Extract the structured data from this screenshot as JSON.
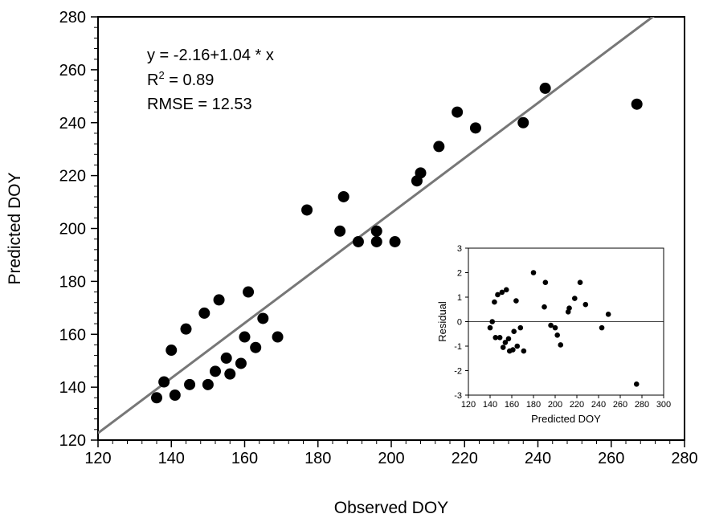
{
  "chart_data": [
    {
      "type": "scatter",
      "xlabel": "Observed DOY",
      "ylabel": "Predicted DOY",
      "xlim": [
        120,
        280
      ],
      "ylim": [
        120,
        280
      ],
      "xticks": [
        120,
        140,
        160,
        180,
        200,
        220,
        240,
        260,
        280
      ],
      "yticks": [
        120,
        140,
        160,
        180,
        200,
        220,
        240,
        260,
        280
      ],
      "annotations": [
        "y = -2.16+1.04 * x",
        "R",
        "2",
        " = 0.89",
        "RMSE = 12.53"
      ],
      "fit_line": {
        "intercept": -2.16,
        "slope": 1.04
      },
      "points": [
        {
          "x": 136,
          "y": 136
        },
        {
          "x": 138,
          "y": 142
        },
        {
          "x": 140,
          "y": 154
        },
        {
          "x": 141,
          "y": 137
        },
        {
          "x": 144,
          "y": 162
        },
        {
          "x": 145,
          "y": 141
        },
        {
          "x": 149,
          "y": 168
        },
        {
          "x": 150,
          "y": 141
        },
        {
          "x": 152,
          "y": 146
        },
        {
          "x": 153,
          "y": 173
        },
        {
          "x": 155,
          "y": 151
        },
        {
          "x": 156,
          "y": 145
        },
        {
          "x": 159,
          "y": 149
        },
        {
          "x": 160,
          "y": 159
        },
        {
          "x": 161,
          "y": 176
        },
        {
          "x": 163,
          "y": 155
        },
        {
          "x": 165,
          "y": 166
        },
        {
          "x": 169,
          "y": 159
        },
        {
          "x": 177,
          "y": 207
        },
        {
          "x": 186,
          "y": 199
        },
        {
          "x": 187,
          "y": 212
        },
        {
          "x": 191,
          "y": 195
        },
        {
          "x": 196,
          "y": 199
        },
        {
          "x": 196,
          "y": 195
        },
        {
          "x": 201,
          "y": 195
        },
        {
          "x": 207,
          "y": 218
        },
        {
          "x": 208,
          "y": 221
        },
        {
          "x": 213,
          "y": 231
        },
        {
          "x": 218,
          "y": 244
        },
        {
          "x": 223,
          "y": 238
        },
        {
          "x": 236,
          "y": 240
        },
        {
          "x": 242,
          "y": 253
        },
        {
          "x": 267,
          "y": 247
        }
      ]
    },
    {
      "type": "scatter",
      "xlabel": "Predicted DOY",
      "ylabel": "Residual",
      "xlim": [
        120,
        300
      ],
      "ylim": [
        -3,
        3
      ],
      "xticks": [
        120,
        140,
        160,
        180,
        200,
        220,
        240,
        260,
        280,
        300
      ],
      "yticks": [
        -3,
        -2,
        -1,
        0,
        1,
        2,
        3
      ],
      "zero_line": 0,
      "points": [
        {
          "x": 140,
          "y": -0.25
        },
        {
          "x": 142,
          "y": 0.0
        },
        {
          "x": 144,
          "y": 0.8
        },
        {
          "x": 145,
          "y": -0.65
        },
        {
          "x": 147,
          "y": 1.1
        },
        {
          "x": 149,
          "y": -0.65
        },
        {
          "x": 151,
          "y": 1.2
        },
        {
          "x": 152,
          "y": -1.05
        },
        {
          "x": 154,
          "y": -0.85
        },
        {
          "x": 155,
          "y": 1.3
        },
        {
          "x": 157,
          "y": -0.7
        },
        {
          "x": 158,
          "y": -1.2
        },
        {
          "x": 161,
          "y": -1.15
        },
        {
          "x": 162,
          "y": -0.4
        },
        {
          "x": 164,
          "y": 0.85
        },
        {
          "x": 165,
          "y": -1.0
        },
        {
          "x": 168,
          "y": -0.25
        },
        {
          "x": 171,
          "y": -1.2
        },
        {
          "x": 180,
          "y": 2.0
        },
        {
          "x": 191,
          "y": 1.6
        },
        {
          "x": 190,
          "y": 0.6
        },
        {
          "x": 196,
          "y": -0.15
        },
        {
          "x": 200,
          "y": -0.25
        },
        {
          "x": 202,
          "y": -0.55
        },
        {
          "x": 205,
          "y": -0.95
        },
        {
          "x": 212,
          "y": 0.4
        },
        {
          "x": 213,
          "y": 0.55
        },
        {
          "x": 218,
          "y": 0.95
        },
        {
          "x": 223,
          "y": 1.6
        },
        {
          "x": 228,
          "y": 0.7
        },
        {
          "x": 243,
          "y": -0.25
        },
        {
          "x": 249,
          "y": 0.3
        },
        {
          "x": 275,
          "y": -2.55
        }
      ]
    }
  ]
}
